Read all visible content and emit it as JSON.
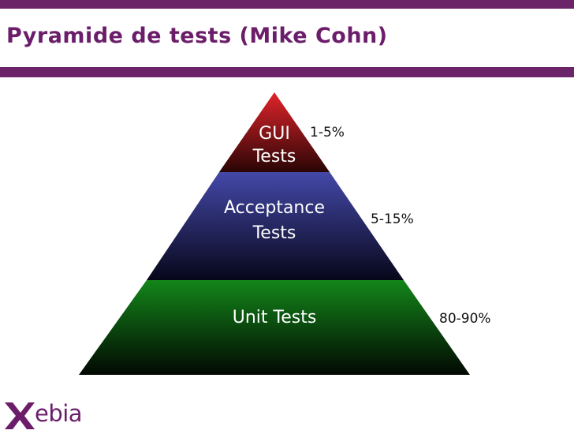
{
  "slide": {
    "title": "Pyramide de tests (Mike Cohn)"
  },
  "pyramid": {
    "layers": [
      {
        "line1": "GUI",
        "line2": "Tests",
        "share": "1-5%",
        "color": "#c4161c"
      },
      {
        "line1": "Acceptance",
        "line2": "Tests",
        "share": "5-15%",
        "color": "#3b3f9a"
      },
      {
        "line1": "Unit Tests",
        "line2": "",
        "share": "80-90%",
        "color": "#117a14"
      }
    ]
  },
  "footer": {
    "logo_text": "ebia",
    "logo_icon": "xebia-x-logo",
    "brand_color": "#6b1d6a"
  }
}
